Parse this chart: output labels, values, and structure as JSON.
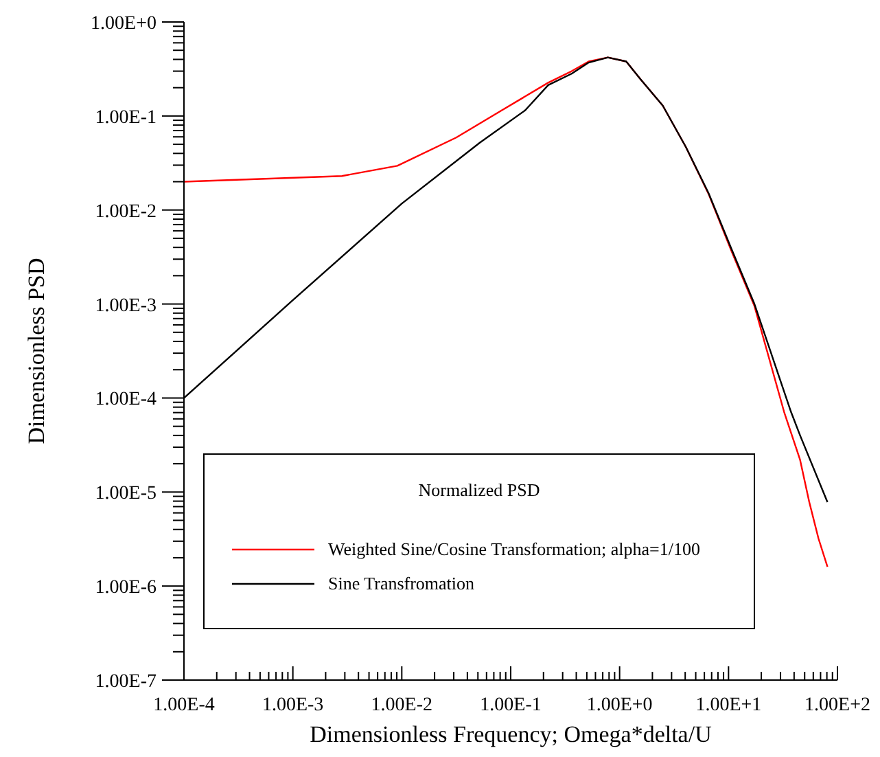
{
  "chart_data": {
    "type": "line",
    "xlabel": "Dimensionless Frequency; Omega*delta/U",
    "ylabel": "Dimensionless PSD",
    "legend_title": "Normalized PSD",
    "log": "xy",
    "grid": false,
    "legend": "bottom",
    "marker": "none",
    "line_style": "solid",
    "xlim": [
      0.0001,
      100
    ],
    "ylim": [
      1e-07,
      1
    ],
    "xticks": [
      {
        "value": 0.0001,
        "label": "1.00E-4"
      },
      {
        "value": 0.0002,
        "label": null
      },
      {
        "value": 0.0003,
        "label": null
      },
      {
        "value": 0.0004,
        "label": null
      },
      {
        "value": 0.0005,
        "label": null
      },
      {
        "value": 0.0006,
        "label": null
      },
      {
        "value": 0.0007,
        "label": null
      },
      {
        "value": 0.0008,
        "label": null
      },
      {
        "value": 0.0009,
        "label": null
      },
      {
        "value": 0.001,
        "label": "1.00E-3"
      },
      {
        "value": 0.002,
        "label": null
      },
      {
        "value": 0.003,
        "label": null
      },
      {
        "value": 0.004,
        "label": null
      },
      {
        "value": 0.005,
        "label": null
      },
      {
        "value": 0.006,
        "label": null
      },
      {
        "value": 0.007,
        "label": null
      },
      {
        "value": 0.008,
        "label": null
      },
      {
        "value": 0.009,
        "label": null
      },
      {
        "value": 0.01,
        "label": "1.00E-2"
      },
      {
        "value": 0.02,
        "label": null
      },
      {
        "value": 0.03,
        "label": null
      },
      {
        "value": 0.04,
        "label": null
      },
      {
        "value": 0.05,
        "label": null
      },
      {
        "value": 0.06,
        "label": null
      },
      {
        "value": 0.07,
        "label": null
      },
      {
        "value": 0.08,
        "label": null
      },
      {
        "value": 0.09,
        "label": null
      },
      {
        "value": 0.1,
        "label": "1.00E-1"
      },
      {
        "value": 0.2,
        "label": null
      },
      {
        "value": 0.3,
        "label": null
      },
      {
        "value": 0.4,
        "label": null
      },
      {
        "value": 0.5,
        "label": null
      },
      {
        "value": 0.6,
        "label": null
      },
      {
        "value": 0.7,
        "label": null
      },
      {
        "value": 0.8,
        "label": null
      },
      {
        "value": 0.9,
        "label": null
      },
      {
        "value": 1,
        "label": "1.00E+0"
      },
      {
        "value": 2,
        "label": null
      },
      {
        "value": 3,
        "label": null
      },
      {
        "value": 4,
        "label": null
      },
      {
        "value": 5,
        "label": null
      },
      {
        "value": 6,
        "label": null
      },
      {
        "value": 7,
        "label": null
      },
      {
        "value": 8,
        "label": null
      },
      {
        "value": 9,
        "label": null
      },
      {
        "value": 10,
        "label": "1.00E+1"
      },
      {
        "value": 20,
        "label": null
      },
      {
        "value": 30,
        "label": null
      },
      {
        "value": 40,
        "label": null
      },
      {
        "value": 50,
        "label": null
      },
      {
        "value": 60,
        "label": null
      },
      {
        "value": 70,
        "label": null
      },
      {
        "value": 80,
        "label": null
      },
      {
        "value": 90,
        "label": null
      },
      {
        "value": 100,
        "label": "1.00E+2"
      }
    ],
    "yticks": [
      {
        "value": 1e-07,
        "label": "1.00E-7"
      },
      {
        "value": 2e-07,
        "label": null
      },
      {
        "value": 3e-07,
        "label": null
      },
      {
        "value": 4e-07,
        "label": null
      },
      {
        "value": 5e-07,
        "label": null
      },
      {
        "value": 6e-07,
        "label": null
      },
      {
        "value": 7e-07,
        "label": null
      },
      {
        "value": 8e-07,
        "label": null
      },
      {
        "value": 9e-07,
        "label": null
      },
      {
        "value": 1e-06,
        "label": "1.00E-6"
      },
      {
        "value": 2e-06,
        "label": null
      },
      {
        "value": 3e-06,
        "label": null
      },
      {
        "value": 4e-06,
        "label": null
      },
      {
        "value": 5e-06,
        "label": null
      },
      {
        "value": 6e-06,
        "label": null
      },
      {
        "value": 7e-06,
        "label": null
      },
      {
        "value": 8e-06,
        "label": null
      },
      {
        "value": 9e-06,
        "label": null
      },
      {
        "value": 1e-05,
        "label": "1.00E-5"
      },
      {
        "value": 2e-05,
        "label": null
      },
      {
        "value": 3e-05,
        "label": null
      },
      {
        "value": 4e-05,
        "label": null
      },
      {
        "value": 5e-05,
        "label": null
      },
      {
        "value": 6e-05,
        "label": null
      },
      {
        "value": 7e-05,
        "label": null
      },
      {
        "value": 8e-05,
        "label": null
      },
      {
        "value": 9e-05,
        "label": null
      },
      {
        "value": 0.0001,
        "label": "1.00E-4"
      },
      {
        "value": 0.0002,
        "label": null
      },
      {
        "value": 0.0003,
        "label": null
      },
      {
        "value": 0.0004,
        "label": null
      },
      {
        "value": 0.0005,
        "label": null
      },
      {
        "value": 0.0006,
        "label": null
      },
      {
        "value": 0.0007,
        "label": null
      },
      {
        "value": 0.0008,
        "label": null
      },
      {
        "value": 0.0009,
        "label": null
      },
      {
        "value": 0.001,
        "label": "1.00E-3"
      },
      {
        "value": 0.002,
        "label": null
      },
      {
        "value": 0.003,
        "label": null
      },
      {
        "value": 0.004,
        "label": null
      },
      {
        "value": 0.005,
        "label": null
      },
      {
        "value": 0.006,
        "label": null
      },
      {
        "value": 0.007,
        "label": null
      },
      {
        "value": 0.008,
        "label": null
      },
      {
        "value": 0.009,
        "label": null
      },
      {
        "value": 0.01,
        "label": "1.00E-2"
      },
      {
        "value": 0.02,
        "label": null
      },
      {
        "value": 0.03,
        "label": null
      },
      {
        "value": 0.04,
        "label": null
      },
      {
        "value": 0.05,
        "label": null
      },
      {
        "value": 0.06,
        "label": null
      },
      {
        "value": 0.07,
        "label": null
      },
      {
        "value": 0.08,
        "label": null
      },
      {
        "value": 0.09,
        "label": null
      },
      {
        "value": 0.1,
        "label": "1.00E-1"
      },
      {
        "value": 0.2,
        "label": null
      },
      {
        "value": 0.3,
        "label": null
      },
      {
        "value": 0.4,
        "label": null
      },
      {
        "value": 0.5,
        "label": null
      },
      {
        "value": 0.6,
        "label": null
      },
      {
        "value": 0.7,
        "label": null
      },
      {
        "value": 0.8,
        "label": null
      },
      {
        "value": 0.9,
        "label": null
      },
      {
        "value": 1,
        "label": "1.00E+0"
      }
    ],
    "series": [
      {
        "name": "Weighted Sine/Cosine Transformation; alpha=1/100",
        "color": "#ff0000",
        "x": [
          0.0001,
          0.00282,
          0.0091,
          0.0316,
          0.083,
          0.221,
          0.363,
          0.52,
          0.78,
          1.15,
          1.54,
          2.49,
          4.05,
          6.56,
          10.6,
          17.3,
          32.4,
          45.4,
          55,
          67,
          81
        ],
        "values": [
          0.02,
          0.023,
          0.0295,
          0.059,
          0.115,
          0.226,
          0.3,
          0.38,
          0.42,
          0.38,
          0.25,
          0.129,
          0.047,
          0.0148,
          0.0037,
          0.00095,
          7.1e-05,
          2.2e-05,
          7.9e-06,
          3.2e-06,
          1.6e-06
        ]
      },
      {
        "name": "Sine Transfromation",
        "color": "#000000",
        "x": [
          0.0001,
          0.001,
          0.01,
          0.052,
          0.136,
          0.221,
          0.363,
          0.52,
          0.78,
          1.15,
          1.54,
          2.49,
          4.05,
          6.56,
          10.6,
          17.3,
          37.5,
          45.4,
          81
        ],
        "values": [
          0.0001,
          0.0011,
          0.0117,
          0.052,
          0.115,
          0.213,
          0.282,
          0.37,
          0.42,
          0.38,
          0.25,
          0.129,
          0.047,
          0.0151,
          0.0039,
          0.001,
          7.1e-05,
          4e-05,
          7.8e-06
        ]
      }
    ]
  }
}
